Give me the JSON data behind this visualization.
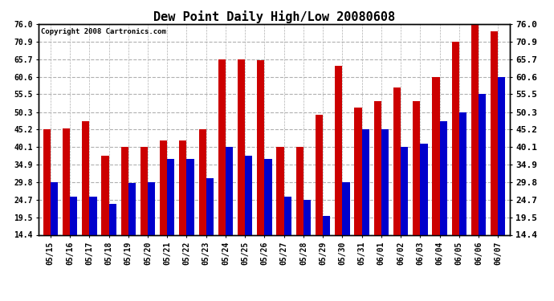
{
  "title": "Dew Point Daily High/Low 20080608",
  "copyright": "Copyright 2008 Cartronics.com",
  "dates": [
    "05/15",
    "05/16",
    "05/17",
    "05/18",
    "05/19",
    "05/20",
    "05/21",
    "05/22",
    "05/23",
    "05/24",
    "05/25",
    "05/26",
    "05/27",
    "05/28",
    "05/29",
    "05/30",
    "05/31",
    "06/01",
    "06/02",
    "06/03",
    "06/04",
    "06/05",
    "06/06",
    "06/07"
  ],
  "highs": [
    45.2,
    45.5,
    47.5,
    37.5,
    40.1,
    40.1,
    42.0,
    42.0,
    45.2,
    65.7,
    65.7,
    65.5,
    40.1,
    40.1,
    49.5,
    63.8,
    51.5,
    53.5,
    57.5,
    53.5,
    60.6,
    70.9,
    76.0,
    74.0
  ],
  "lows": [
    29.8,
    25.5,
    25.5,
    23.5,
    29.5,
    29.8,
    36.5,
    36.5,
    31.0,
    40.1,
    37.5,
    36.5,
    25.5,
    24.7,
    20.0,
    29.8,
    45.2,
    45.2,
    40.1,
    41.0,
    47.5,
    50.3,
    55.5,
    60.6
  ],
  "bar_color_high": "#cc0000",
  "bar_color_low": "#0000cc",
  "background_color": "#ffffff",
  "plot_background": "#ffffff",
  "grid_color": "#b0b0b0",
  "yticks": [
    14.4,
    19.5,
    24.7,
    29.8,
    34.9,
    40.1,
    45.2,
    50.3,
    55.5,
    60.6,
    65.7,
    70.9,
    76.0
  ],
  "ymin": 14.4,
  "ymax": 76.0,
  "title_fontsize": 11,
  "tick_fontsize": 7,
  "copyright_fontsize": 6.5
}
